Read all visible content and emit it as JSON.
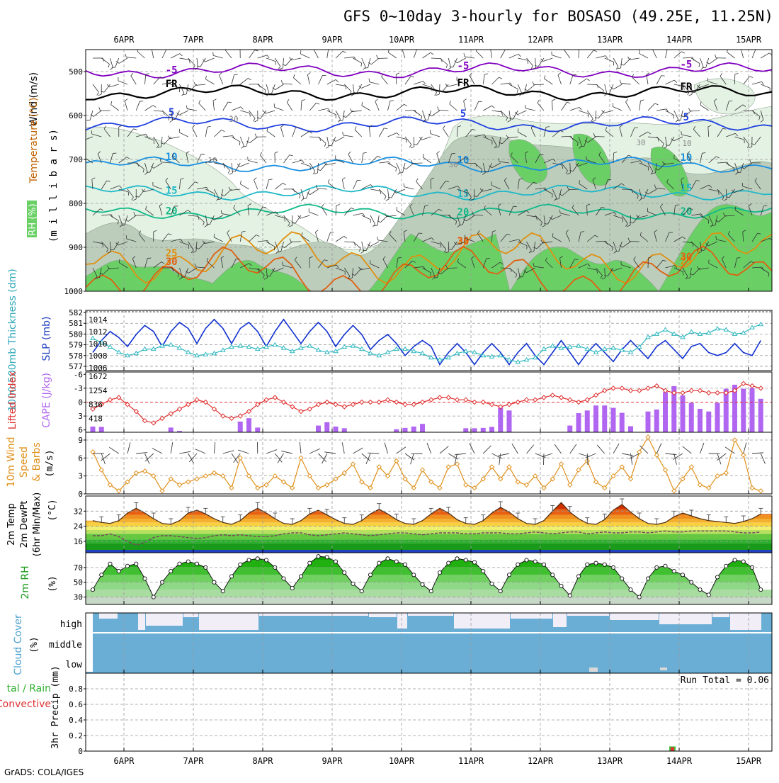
{
  "title": "GFS 0~10day 3-hourly for BOSASO (49.25E, 11.25N)",
  "credit": "GrADS: COLA/IGES",
  "colors": {
    "temp_5n": "#8000c0",
    "temp_fr": "#000000",
    "temp_5": "#2040e0",
    "temp_10": "#1890e0",
    "temp_15": "#20b8c8",
    "temp_20": "#10b888",
    "temp_25": "#e09010",
    "temp_30": "#e06010",
    "rh_light": "#e4f2e4",
    "rh_mid": "#bccdbc",
    "rh_green": "#6ad066",
    "slp": "#1030d0",
    "thick": "#30b8c0",
    "li": "#e03030",
    "cape": "#b066f0",
    "wind": "#e0901a",
    "cloud": "#6aaed6",
    "precip_total": "#40c040",
    "precip_conv": "#e03030"
  },
  "chart_data": [
    {
      "type": "contour",
      "panel": "upper-air",
      "ylabel": "millibars",
      "y_ticks": [
        500,
        600,
        700,
        800,
        900,
        1000
      ],
      "ylim": [
        450,
        1000
      ],
      "x_ticks": [
        "6APR",
        "7APR",
        "8APR",
        "9APR",
        "10APR",
        "11APR",
        "12APR",
        "13APR",
        "14APR",
        "15APR"
      ],
      "side_labels": {
        "wind": "Wind (m/s)",
        "temp": "Temperature (°C)",
        "rh": "RH (%)"
      },
      "isotherms": [
        {
          "label": "-5",
          "pressure": 498
        },
        {
          "label": "FR",
          "pressure": 548
        },
        {
          "label": "5",
          "pressure": 620
        },
        {
          "label": "10",
          "pressure": 712
        },
        {
          "label": "15",
          "pressure": 775
        },
        {
          "label": "20",
          "pressure": 820
        },
        {
          "label": "25",
          "pressure": 920
        },
        {
          "label": "30",
          "pressure": 960
        }
      ],
      "rh_labels": [
        "30",
        "10"
      ]
    },
    {
      "type": "line",
      "panel": "thickness-slp",
      "left_label": "1000-500mb Thickness (dm)",
      "right_label": "SLP (mb)",
      "left_ticks": [
        577,
        578,
        579,
        580,
        581,
        582
      ],
      "right_ticks": [
        1006,
        1008,
        1010,
        1012,
        1014
      ],
      "series": [
        {
          "name": "SLP (mb)",
          "axis": "right",
          "values": [
            1008.5,
            1010.5,
            1012.0,
            1011.0,
            1009.5,
            1011.5,
            1013.0,
            1012.0,
            1009.5,
            1012.0,
            1013.5,
            1012.5,
            1010.0,
            1012.5,
            1014.0,
            1012.5,
            1010.0,
            1012.5,
            1013.5,
            1012.0,
            1009.5,
            1012.0,
            1014.0,
            1012.0,
            1010.0,
            1012.0,
            1013.5,
            1012.0,
            1009.5,
            1011.5,
            1013.0,
            1011.5,
            1009.0,
            1010.5,
            1011.5,
            1010.0,
            1008.0,
            1009.5,
            1010.5,
            1009.5,
            1006.5,
            1008.5,
            1010.0,
            1008.5,
            1006.5,
            1008.5,
            1010.0,
            1008.5,
            1006.5,
            1008.5,
            1010.0,
            1008.0,
            1006.5,
            1008.5,
            1010.5,
            1008.5,
            1006.5,
            1008.5,
            1010.0,
            1008.5,
            1007.0,
            1009.0,
            1010.5,
            1009.0,
            1007.5,
            1009.5,
            1010.5,
            1009.0,
            1007.5,
            1009.5,
            1010.0,
            1008.5,
            1008.0,
            1008.5,
            1010.0,
            1008.5,
            1008.0,
            1010.5
          ]
        },
        {
          "name": "1000-500mb Thickness (dm)",
          "axis": "left",
          "values": [
            579.6,
            579.2,
            578.8,
            578.3,
            578.0,
            578.2,
            578.6,
            578.6,
            578.9,
            579.0,
            578.7,
            578.3,
            578.0,
            578.1,
            578.2,
            578.5,
            578.8,
            578.9,
            578.8,
            578.6,
            578.8,
            579.0,
            578.7,
            578.4,
            578.7,
            578.9,
            578.5,
            578.3,
            578.4,
            578.8,
            578.9,
            578.6,
            578.2,
            578.0,
            578.3,
            578.6,
            578.6,
            578.4,
            578.2,
            577.8,
            577.6,
            577.8,
            578.2,
            578.4,
            578.3,
            578.0,
            577.9,
            578.0,
            577.6,
            577.4,
            577.6,
            577.8,
            578.6,
            578.9,
            578.7,
            578.8,
            578.9,
            578.6,
            578.3,
            578.6,
            578.7,
            578.5,
            578.3,
            578.8,
            579.7,
            580.0,
            580.4,
            580.0,
            579.7,
            580.2,
            580.0,
            580.1,
            580.5,
            580.4,
            580.0,
            580.1,
            580.6,
            580.9
          ]
        }
      ]
    },
    {
      "type": "bar+line",
      "panel": "stability",
      "left_label": "Lifted Index",
      "right_label": "CAPE (J/kg)",
      "left_ticks": [
        -6,
        -3,
        0,
        3,
        6
      ],
      "right_ticks": [
        418,
        836,
        1254,
        1672
      ],
      "series": [
        {
          "name": "Lifted Index",
          "axis": "left",
          "values": [
            1.5,
            0.5,
            -0.5,
            -1.0,
            0.5,
            2.0,
            4.0,
            4.5,
            3.5,
            2.5,
            1.5,
            0.5,
            -0.5,
            0.0,
            1.5,
            3.0,
            3.5,
            3.0,
            2.0,
            0.5,
            -0.5,
            -1.0,
            0.0,
            1.0,
            2.0,
            1.5,
            0.5,
            0.0,
            0.5,
            1.0,
            0.5,
            0.0,
            0.0,
            0.0,
            -0.5,
            0.0,
            0.5,
            0.5,
            0.0,
            -0.5,
            -1.0,
            -1.0,
            -0.5,
            -0.5,
            0.0,
            0.0,
            0.5,
            1.0,
            0.5,
            0.0,
            -0.5,
            -0.5,
            -1.0,
            -1.5,
            -1.0,
            -0.5,
            0.0,
            -0.5,
            -1.5,
            -2.5,
            -3.0,
            -3.0,
            -2.5,
            -2.5,
            -3.0,
            -3.5,
            -2.5,
            -2.0,
            -2.0,
            -2.5,
            -2.5,
            -2.0,
            -2.0,
            -2.0,
            -2.5,
            -4.0,
            -3.5,
            -3.0
          ]
        },
        {
          "name": "CAPE (J/kg)",
          "axis": "right",
          "values": [
            170,
            160,
            0,
            0,
            0,
            0,
            0,
            0,
            0,
            140,
            40,
            0,
            0,
            0,
            0,
            0,
            0,
            320,
            420,
            140,
            0,
            0,
            0,
            0,
            0,
            0,
            200,
            300,
            170,
            120,
            0,
            0,
            0,
            0,
            0,
            90,
            130,
            170,
            250,
            0,
            0,
            0,
            0,
            120,
            120,
            130,
            160,
            730,
            650,
            0,
            0,
            0,
            0,
            0,
            0,
            200,
            570,
            650,
            800,
            800,
            730,
            580,
            180,
            0,
            620,
            680,
            1200,
            1380,
            1100,
            880,
            700,
            620,
            880,
            1300,
            1420,
            1300,
            1320,
            1000
          ]
        }
      ]
    },
    {
      "type": "line",
      "panel": "10m-wind",
      "ylabel": "10m Wind Speed & Barbs (m/s)",
      "y_ticks": [
        0,
        3,
        6,
        9
      ],
      "ylim": [
        0,
        10
      ],
      "values": [
        7.0,
        4.0,
        1.5,
        0.5,
        2.0,
        3.5,
        3.8,
        3.0,
        0.5,
        2.5,
        1.5,
        2.0,
        2.5,
        3.0,
        3.5,
        3.0,
        1.0,
        6.0,
        3.0,
        1.0,
        1.5,
        3.0,
        2.0,
        1.0,
        6.0,
        3.0,
        1.0,
        1.5,
        2.5,
        3.5,
        5.0,
        2.0,
        1.0,
        4.5,
        3.0,
        5.5,
        2.5,
        1.0,
        4.0,
        2.0,
        1.0,
        4.5,
        5.0,
        1.5,
        1.0,
        2.5,
        4.5,
        2.5,
        4.5,
        2.0,
        1.5,
        3.0,
        1.0,
        2.5,
        5.0,
        1.5,
        4.0,
        5.5,
        2.0,
        1.0,
        3.0,
        4.5,
        2.5,
        7.0,
        9.5,
        6.5,
        4.0,
        0.5,
        2.5,
        4.5,
        1.5,
        1.0,
        3.0,
        3.5,
        9.0,
        6.5,
        1.0,
        0.5
      ]
    },
    {
      "type": "area",
      "panel": "2m-temp",
      "ylabel": "2m Temp 2m DewPt (6hr Min/Max) (°C)",
      "y_ticks": [
        16,
        24,
        32
      ],
      "ylim": [
        10,
        40
      ],
      "series": [
        {
          "name": "2m Temp",
          "values": [
            27.0,
            26.0,
            25.5,
            27.0,
            31.0,
            33.5,
            31.0,
            28.0,
            25.5,
            25.0,
            27.0,
            31.0,
            32.5,
            30.5,
            28.0,
            26.0,
            25.0,
            27.0,
            31.0,
            33.5,
            31.0,
            28.0,
            25.5,
            25.0,
            27.0,
            30.5,
            32.5,
            30.0,
            27.5,
            25.5,
            25.0,
            27.0,
            30.5,
            33.0,
            30.5,
            27.5,
            25.5,
            25.0,
            27.0,
            30.5,
            33.5,
            31.0,
            27.5,
            25.5,
            25.0,
            27.0,
            31.0,
            34.0,
            31.5,
            28.0,
            25.5,
            25.0,
            27.0,
            32.0,
            36.5,
            31.5,
            28.0,
            25.5,
            25.0,
            27.5,
            32.5,
            35.5,
            31.5,
            28.0,
            25.5,
            25.0,
            26.0,
            29.0,
            31.0,
            29.5,
            28.0,
            27.0,
            26.5,
            26.0,
            25.5,
            26.5,
            28.0,
            30.5
          ]
        },
        {
          "name": "2m DewPt",
          "values": [
            19.0,
            19.0,
            20.0,
            18.5,
            16.0,
            14.0,
            15.5,
            18.0,
            19.0,
            19.0,
            18.5,
            18.0,
            17.5,
            18.0,
            19.0,
            19.5,
            19.0,
            19.5,
            19.0,
            18.5,
            18.5,
            19.0,
            20.0,
            20.5,
            20.5,
            19.5,
            19.0,
            19.5,
            20.0,
            20.5,
            20.0,
            19.5,
            19.0,
            19.5,
            20.0,
            20.5,
            20.5,
            20.0,
            19.5,
            20.0,
            20.5,
            20.5,
            20.5,
            20.0,
            20.0,
            20.5,
            20.5,
            20.5,
            20.0,
            20.0,
            20.5,
            21.0,
            20.5,
            20.0,
            20.5,
            21.0,
            21.0,
            20.0,
            20.5,
            21.0,
            20.5,
            20.5,
            21.0,
            21.0,
            20.5,
            21.0,
            21.5,
            21.0,
            21.0,
            21.5,
            21.5,
            21.5,
            21.5,
            21.5,
            21.0,
            20.5,
            20.5,
            21.0
          ]
        }
      ]
    },
    {
      "type": "area",
      "panel": "2m-rh",
      "ylabel": "2m RH (%)",
      "y_ticks": [
        30,
        50,
        70
      ],
      "ylim": [
        20,
        90
      ],
      "values": [
        40,
        60,
        75,
        65,
        72,
        75,
        55,
        30,
        50,
        65,
        75,
        78,
        75,
        70,
        50,
        38,
        58,
        74,
        80,
        82,
        80,
        70,
        55,
        42,
        58,
        76,
        85,
        84,
        78,
        63,
        48,
        38,
        60,
        76,
        82,
        78,
        74,
        60,
        47,
        38,
        63,
        76,
        82,
        80,
        77,
        65,
        48,
        38,
        60,
        74,
        80,
        78,
        74,
        60,
        45,
        32,
        58,
        74,
        76,
        74,
        70,
        55,
        40,
        30,
        55,
        70,
        72,
        65,
        60,
        50,
        40,
        33,
        57,
        72,
        80,
        78,
        70,
        40
      ]
    },
    {
      "type": "area",
      "panel": "cloud-cover",
      "ylabel": "Cloud Cover (%)",
      "levels": [
        "high",
        "middle",
        "low"
      ]
    },
    {
      "type": "bar",
      "panel": "3hr-precip",
      "ylabel": "3hr Precip (mm)",
      "legend": [
        "Total / Rain",
        "Convective"
      ],
      "annotation": "Run Total = 0.06",
      "y_ticks": [
        "0",
        "0.2",
        "0.4",
        "0.6",
        "0.8"
      ],
      "ylim": [
        0,
        1
      ],
      "values_mm": {
        "13APR 21Z": 0.06
      }
    }
  ],
  "labels": {
    "wind": "Wind (m/s)",
    "temp": "Temperature (°C)",
    "rh_upper": "RH (%)",
    "millibars": "(m i l l i b a r s)",
    "thickness": "1000-500mb Thickness (dm)",
    "slp": "SLP (mb)",
    "li": "Lifted Index",
    "cape": "CAPE (J/kg)",
    "wind10_a": "10m Wind",
    "wind10_b": "Speed",
    "wind10_c": "& Barbs",
    "wind10_d": "(m/s)",
    "t2_a": "2m Temp",
    "t2_b": "2m DewPt",
    "t2_c": "(6hr Min/Max)",
    "t2_d": "(°C)",
    "rh2_a": "2m RH",
    "rh2_b": "(%)",
    "cc_a": "Cloud Cover",
    "cc_b": "(%)",
    "pr_a": "tal / Rain",
    "pr_b": "Convective",
    "pr_c": "3hr Precip (mm)"
  }
}
